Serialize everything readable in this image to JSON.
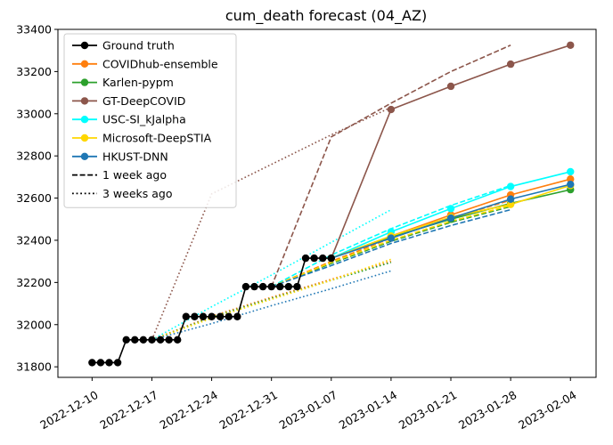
{
  "chart_data": {
    "type": "line",
    "title": "cum_death forecast (04_AZ)",
    "xlabel": "",
    "ylabel": "",
    "x_range": [
      "2022-12-06",
      "2023-02-07"
    ],
    "ylim": [
      31750,
      33400
    ],
    "x_ticks": [
      "2022-12-10",
      "2022-12-17",
      "2022-12-24",
      "2022-12-31",
      "2023-01-07",
      "2023-01-14",
      "2023-01-21",
      "2023-01-28",
      "2023-02-04"
    ],
    "y_ticks": [
      31800,
      32000,
      32200,
      32400,
      32600,
      32800,
      33000,
      33200,
      33400
    ],
    "grid": false,
    "legend_position": "upper-left",
    "ground_truth": {
      "name": "Ground truth",
      "color": "#000000",
      "points": [
        [
          "2022-12-10",
          31820
        ],
        [
          "2022-12-11",
          31820
        ],
        [
          "2022-12-12",
          31820
        ],
        [
          "2022-12-13",
          31820
        ],
        [
          "2022-12-14",
          31928
        ],
        [
          "2022-12-15",
          31928
        ],
        [
          "2022-12-16",
          31928
        ],
        [
          "2022-12-17",
          31928
        ],
        [
          "2022-12-18",
          31928
        ],
        [
          "2022-12-19",
          31928
        ],
        [
          "2022-12-20",
          31928
        ],
        [
          "2022-12-21",
          32038
        ],
        [
          "2022-12-22",
          32038
        ],
        [
          "2022-12-23",
          32038
        ],
        [
          "2022-12-24",
          32038
        ],
        [
          "2022-12-25",
          32038
        ],
        [
          "2022-12-26",
          32038
        ],
        [
          "2022-12-27",
          32038
        ],
        [
          "2022-12-28",
          32180
        ],
        [
          "2022-12-29",
          32180
        ],
        [
          "2022-12-30",
          32180
        ],
        [
          "2022-12-31",
          32180
        ],
        [
          "2023-01-01",
          32180
        ],
        [
          "2023-01-02",
          32180
        ],
        [
          "2023-01-03",
          32180
        ],
        [
          "2023-01-04",
          32315
        ],
        [
          "2023-01-05",
          32315
        ],
        [
          "2023-01-06",
          32315
        ],
        [
          "2023-01-07",
          32315
        ]
      ]
    },
    "series": [
      {
        "name": "COVIDhub-ensemble",
        "color": "#ff7f0e",
        "current": [
          [
            "2023-01-07",
            32315
          ],
          [
            "2023-01-14",
            32420
          ],
          [
            "2023-01-21",
            32520
          ],
          [
            "2023-01-28",
            32615
          ],
          [
            "2023-02-04",
            32690
          ]
        ],
        "week1": [
          [
            "2022-12-31",
            32180
          ],
          [
            "2023-01-07",
            32300
          ],
          [
            "2023-01-14",
            32410
          ],
          [
            "2023-01-21",
            32505
          ],
          [
            "2023-01-28",
            32590
          ]
        ],
        "week3": [
          [
            "2022-12-17",
            31928
          ],
          [
            "2022-12-24",
            32040
          ],
          [
            "2022-12-31",
            32130
          ],
          [
            "2023-01-07",
            32215
          ],
          [
            "2023-01-14",
            32300
          ]
        ]
      },
      {
        "name": "Karlen-pypm",
        "color": "#2ca02c",
        "current": [
          [
            "2023-01-07",
            32315
          ],
          [
            "2023-01-14",
            32415
          ],
          [
            "2023-01-21",
            32500
          ],
          [
            "2023-01-28",
            32575
          ],
          [
            "2023-02-04",
            32640
          ]
        ],
        "week1": [
          [
            "2022-12-31",
            32180
          ],
          [
            "2023-01-07",
            32290
          ],
          [
            "2023-01-14",
            32395
          ],
          [
            "2023-01-21",
            32485
          ],
          [
            "2023-01-28",
            32560
          ]
        ],
        "week3": [
          [
            "2022-12-17",
            31928
          ],
          [
            "2022-12-24",
            32035
          ],
          [
            "2022-12-31",
            32125
          ],
          [
            "2023-01-07",
            32210
          ],
          [
            "2023-01-14",
            32295
          ]
        ]
      },
      {
        "name": "GT-DeepCOVID",
        "color": "#8c564b",
        "current": [
          [
            "2023-01-07",
            32315
          ],
          [
            "2023-01-14",
            33020
          ],
          [
            "2023-01-21",
            33130
          ],
          [
            "2023-01-28",
            33235
          ],
          [
            "2023-02-04",
            33325
          ]
        ],
        "week1": [
          [
            "2022-12-31",
            32180
          ],
          [
            "2023-01-07",
            32890
          ],
          [
            "2023-01-14",
            33050
          ],
          [
            "2023-01-21",
            33200
          ],
          [
            "2023-01-28",
            33325
          ]
        ],
        "week3": [
          [
            "2022-12-17",
            31928
          ],
          [
            "2022-12-24",
            32620
          ],
          [
            "2022-12-31",
            32760
          ],
          [
            "2023-01-07",
            32900
          ],
          [
            "2023-01-14",
            33030
          ]
        ]
      },
      {
        "name": "USC-SI_kJalpha",
        "color": "#00ffff",
        "current": [
          [
            "2023-01-07",
            32315
          ],
          [
            "2023-01-14",
            32440
          ],
          [
            "2023-01-21",
            32550
          ],
          [
            "2023-01-28",
            32655
          ],
          [
            "2023-02-04",
            32725
          ]
        ],
        "week1": [
          [
            "2022-12-31",
            32180
          ],
          [
            "2023-01-07",
            32330
          ],
          [
            "2023-01-14",
            32455
          ],
          [
            "2023-01-21",
            32565
          ],
          [
            "2023-01-28",
            32660
          ]
        ],
        "week3": [
          [
            "2022-12-17",
            31928
          ],
          [
            "2022-12-24",
            32085
          ],
          [
            "2022-12-31",
            32235
          ],
          [
            "2023-01-07",
            32390
          ],
          [
            "2023-01-14",
            32545
          ]
        ]
      },
      {
        "name": "Microsoft-DeepSTIA",
        "color": "#ffd700",
        "current": [
          [
            "2023-01-07",
            32315
          ],
          [
            "2023-01-14",
            32420
          ],
          [
            "2023-01-21",
            32510
          ],
          [
            "2023-01-28",
            32570
          ],
          [
            "2023-02-04",
            32660
          ]
        ],
        "week1": [
          [
            "2022-12-31",
            32180
          ],
          [
            "2023-01-07",
            32295
          ],
          [
            "2023-01-14",
            32400
          ],
          [
            "2023-01-21",
            32490
          ],
          [
            "2023-01-28",
            32565
          ]
        ],
        "week3": [
          [
            "2022-12-17",
            31928
          ],
          [
            "2022-12-24",
            32030
          ],
          [
            "2022-12-31",
            32120
          ],
          [
            "2023-01-07",
            32210
          ],
          [
            "2023-01-14",
            32310
          ]
        ]
      },
      {
        "name": "HKUST-DNN",
        "color": "#1f77b4",
        "current": [
          [
            "2023-01-07",
            32315
          ],
          [
            "2023-01-14",
            32410
          ],
          [
            "2023-01-21",
            32505
          ],
          [
            "2023-01-28",
            32595
          ],
          [
            "2023-02-04",
            32665
          ]
        ],
        "week1": [
          [
            "2022-12-31",
            32180
          ],
          [
            "2023-01-07",
            32280
          ],
          [
            "2023-01-14",
            32385
          ],
          [
            "2023-01-21",
            32470
          ],
          [
            "2023-01-28",
            32545
          ]
        ],
        "week3": [
          [
            "2022-12-17",
            31928
          ],
          [
            "2022-12-24",
            32005
          ],
          [
            "2022-12-31",
            32090
          ],
          [
            "2023-01-07",
            32170
          ],
          [
            "2023-01-14",
            32255
          ]
        ]
      }
    ],
    "legend_extra": [
      {
        "label": "1 week ago",
        "style": "dashed",
        "color": "#000000"
      },
      {
        "label": "3 weeks ago",
        "style": "dotted",
        "color": "#000000"
      }
    ]
  }
}
